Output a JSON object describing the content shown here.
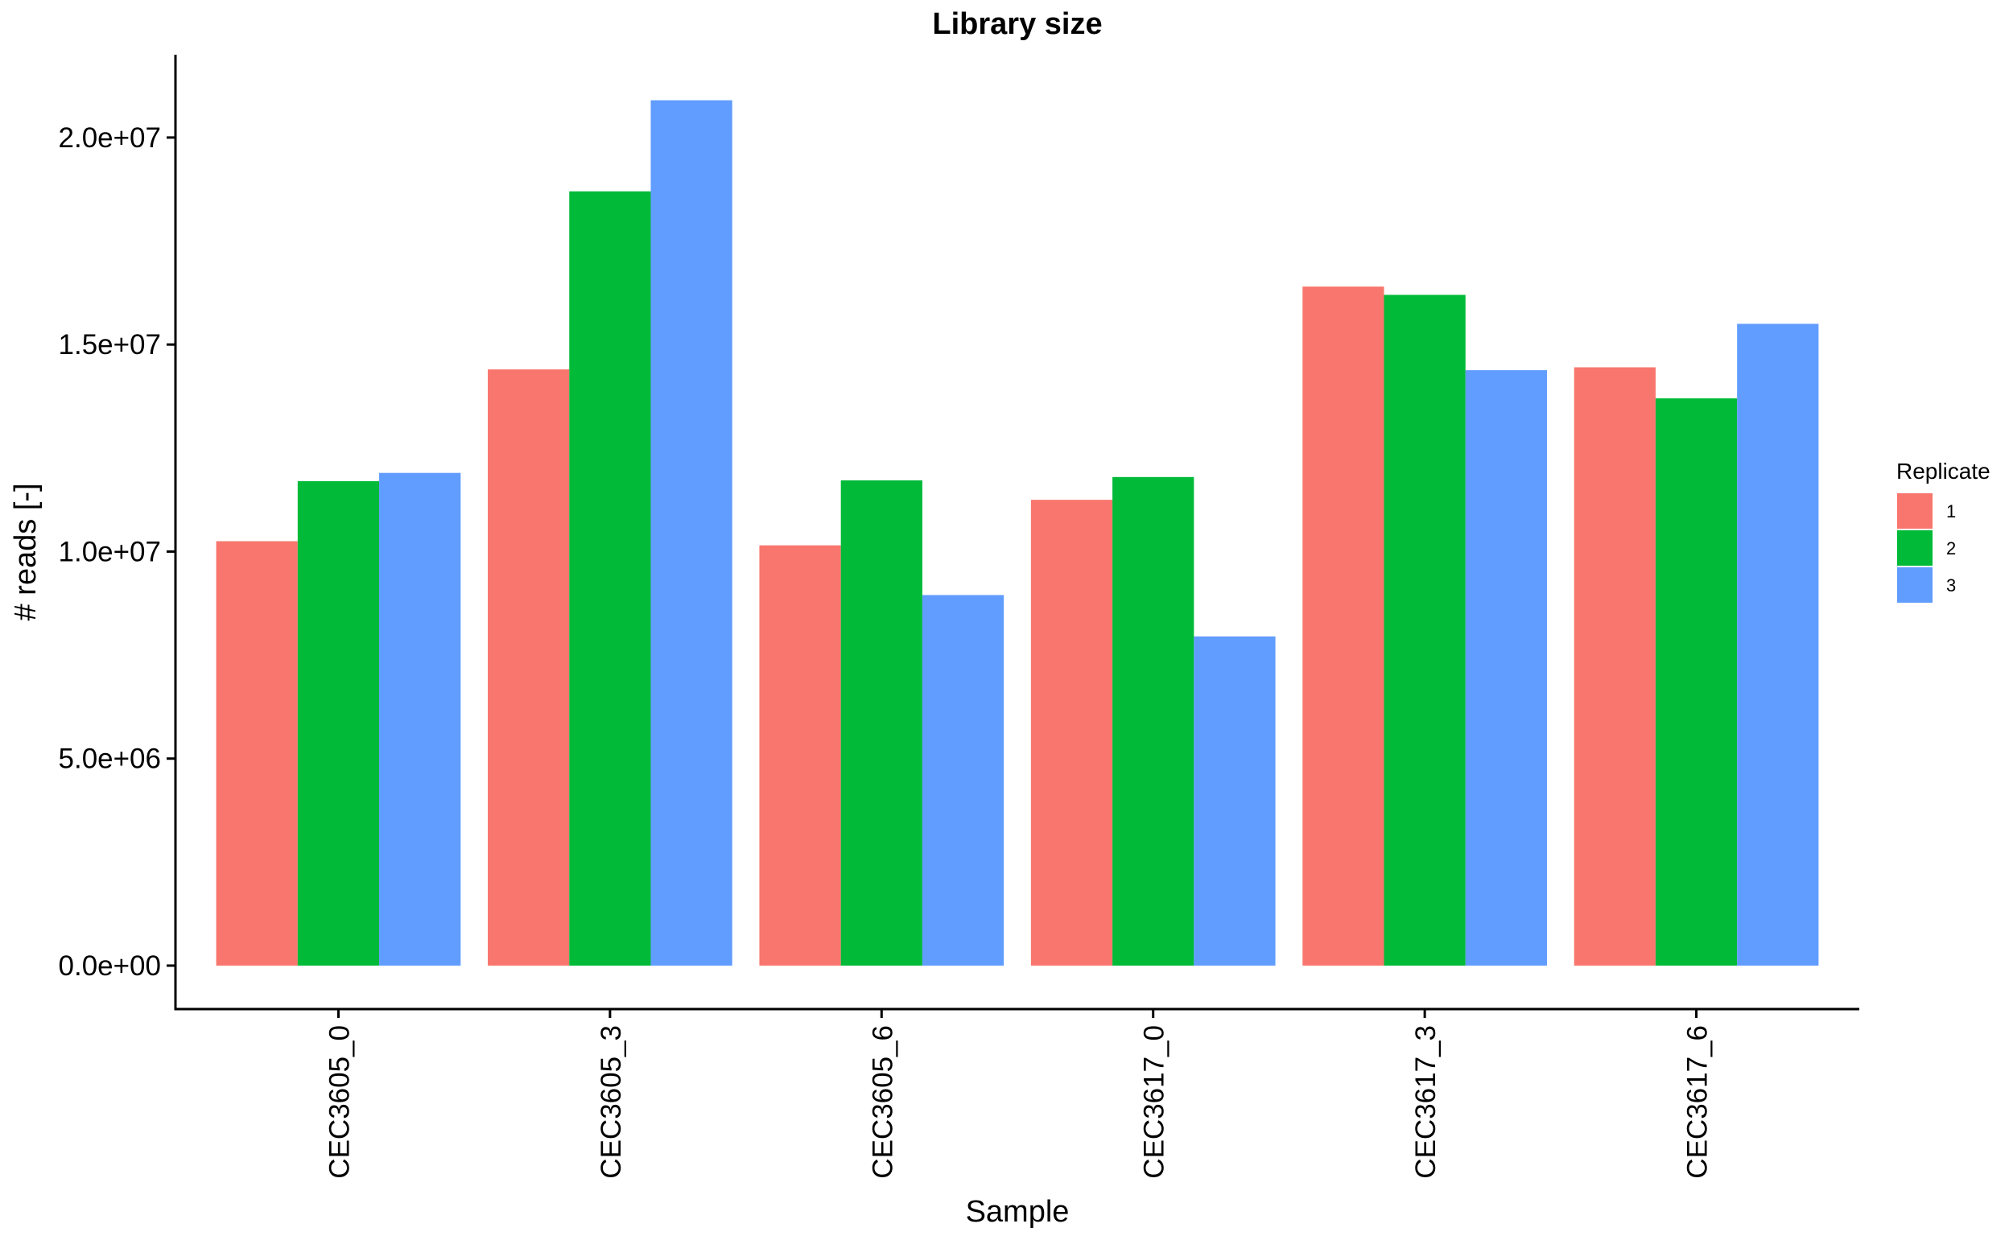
{
  "chart_data": {
    "type": "bar",
    "title": "Library size",
    "xlabel": "Sample",
    "ylabel": "# reads [-]",
    "categories": [
      "CEC3605_0",
      "CEC3605_3",
      "CEC3605_6",
      "CEC3617_0",
      "CEC3617_3",
      "CEC3617_6"
    ],
    "yticks": [
      0,
      5000000,
      10000000,
      15000000,
      20000000
    ],
    "ytick_labels": [
      "0.0e+00",
      "5.0e+06",
      "1.0e+07",
      "1.5e+07",
      "2.0e+07"
    ],
    "ylim": [
      -1050000,
      22000000
    ],
    "legend_title": "Replicate",
    "legend_position": "right",
    "grid": false,
    "series": [
      {
        "name": "1",
        "color": "#F8766D",
        "values": [
          10250000,
          14400000,
          10150000,
          11250000,
          16400000,
          14450000
        ]
      },
      {
        "name": "2",
        "color": "#00BA38",
        "values": [
          11700000,
          18700000,
          11720000,
          11800000,
          16200000,
          13700000
        ]
      },
      {
        "name": "3",
        "color": "#619CFF",
        "values": [
          11900000,
          20900000,
          8950000,
          7950000,
          14380000,
          15500000
        ]
      }
    ]
  }
}
